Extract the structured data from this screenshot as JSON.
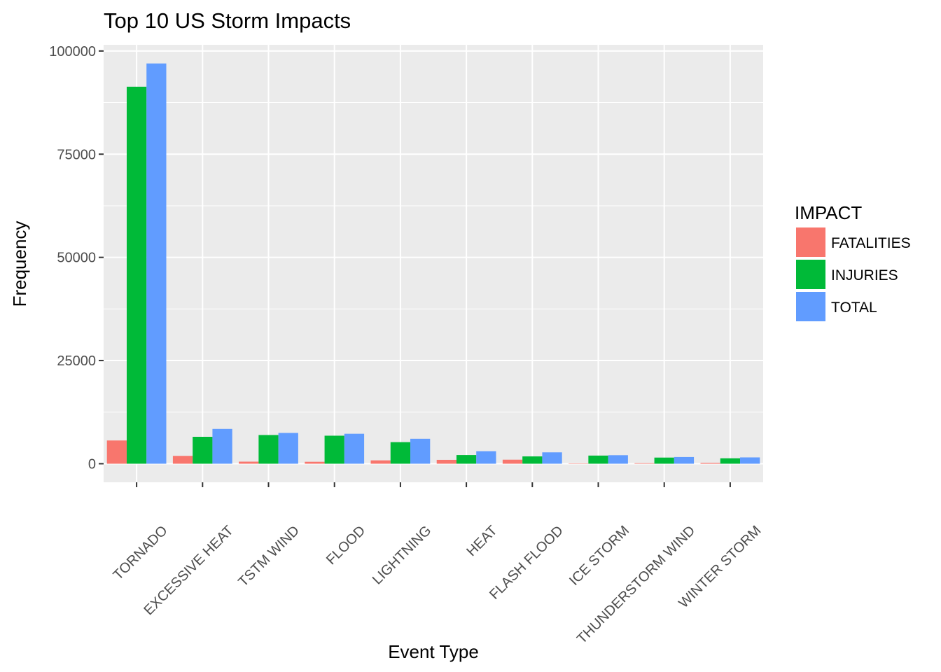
{
  "chart_data": {
    "type": "bar",
    "title": "Top 10 US Storm Impacts",
    "xlabel": "Event Type",
    "ylabel": "Frequency",
    "ylim": [
      -4500,
      101500
    ],
    "yticks": [
      0,
      25000,
      50000,
      75000,
      100000
    ],
    "ytick_labels": [
      "0",
      "25000",
      "50000",
      "75000",
      "100000"
    ],
    "categories": [
      "TORNADO",
      "EXCESSIVE HEAT",
      "TSTM WIND",
      "FLOOD",
      "LIGHTNING",
      "HEAT",
      "FLASH FLOOD",
      "ICE STORM",
      "THUNDERSTORM WIND",
      "WINTER STORM"
    ],
    "series": [
      {
        "name": "FATALITIES",
        "color": "#F8766D",
        "values": [
          5633,
          1903,
          504,
          470,
          816,
          937,
          978,
          89,
          133,
          206
        ]
      },
      {
        "name": "INJURIES",
        "color": "#00BA38",
        "values": [
          91346,
          6525,
          6957,
          6789,
          5230,
          2100,
          1777,
          1975,
          1488,
          1321
        ]
      },
      {
        "name": "TOTAL",
        "color": "#619CFF",
        "values": [
          96979,
          8428,
          7461,
          7259,
          6046,
          3037,
          2755,
          2064,
          1621,
          1527
        ]
      }
    ],
    "legend": {
      "title": "IMPACT",
      "position": "right"
    },
    "grid": true,
    "background": "#EBEBEB"
  }
}
